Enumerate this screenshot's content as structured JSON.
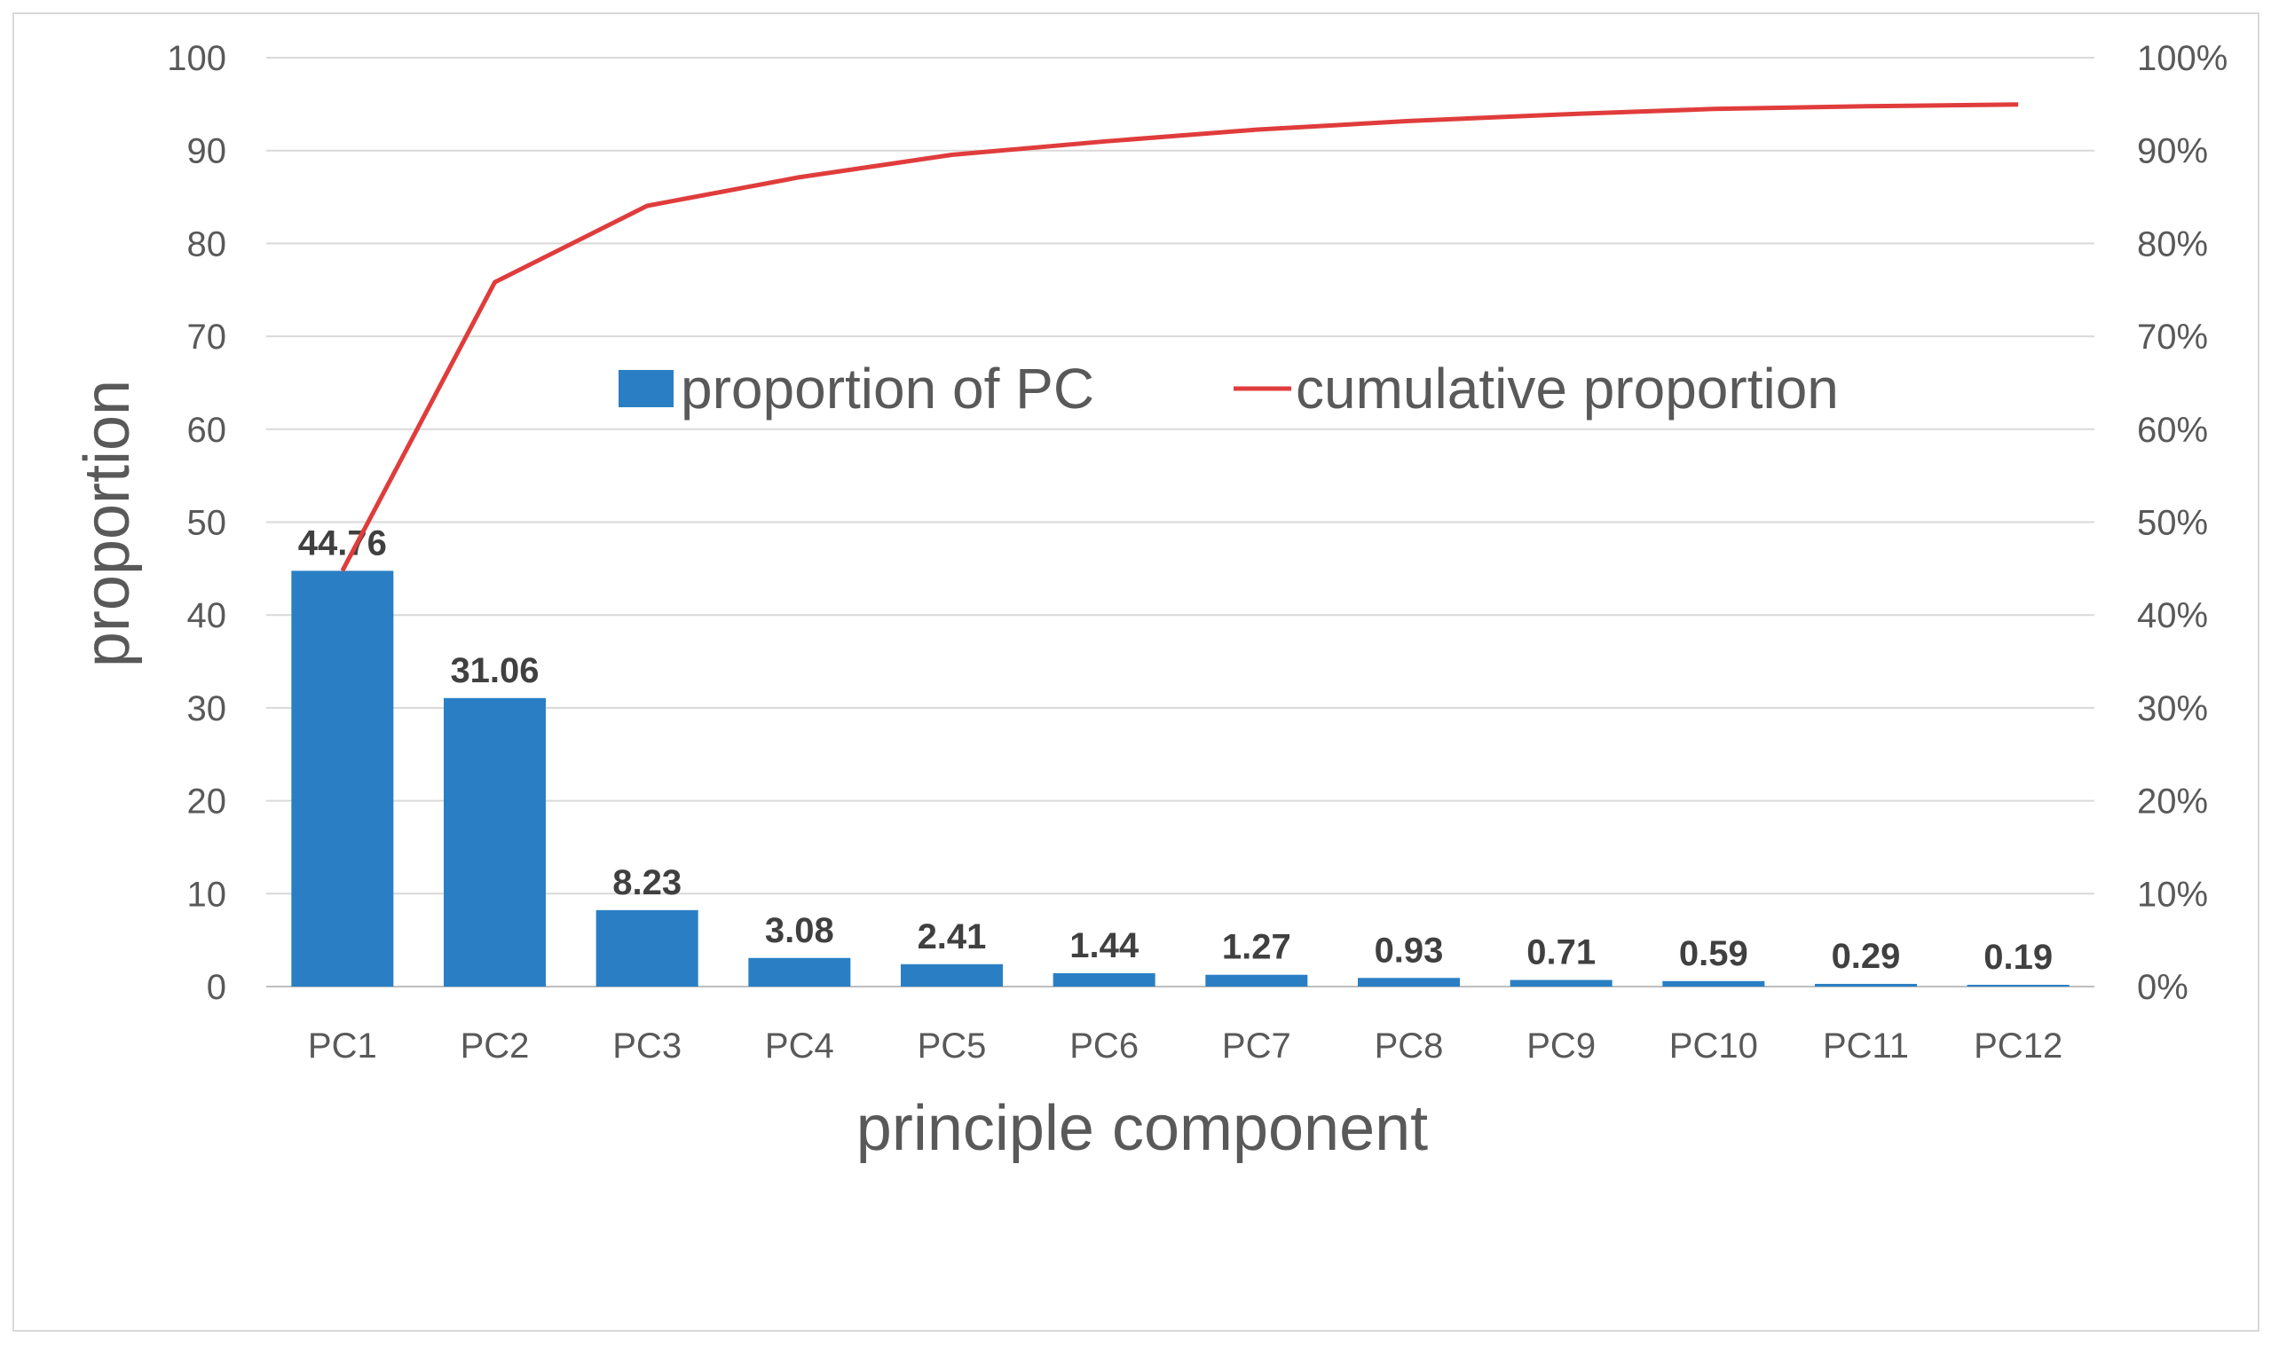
{
  "chart_data": {
    "type": "bar",
    "title": "",
    "xlabel": "principle component",
    "ylabel": "proportion",
    "categories": [
      "PC1",
      "PC2",
      "PC3",
      "PC4",
      "PC5",
      "PC6",
      "PC7",
      "PC8",
      "PC9",
      "PC10",
      "PC11",
      "PC12"
    ],
    "series": [
      {
        "name": "proportion of PC",
        "type": "bar",
        "axis": "left",
        "color": "#2a7fc4",
        "values": [
          44.76,
          31.06,
          8.23,
          3.08,
          2.41,
          1.44,
          1.27,
          0.93,
          0.71,
          0.59,
          0.29,
          0.19
        ],
        "labels": [
          "44.76",
          "31.06",
          "8.23",
          "3.08",
          "2.41",
          "1.44",
          "1.27",
          "0.93",
          "0.71",
          "0.59",
          "0.29",
          "0.19"
        ]
      },
      {
        "name": "cumulative proportion",
        "type": "line",
        "axis": "right",
        "color": "#e03c3c",
        "values": [
          44.76,
          75.82,
          84.05,
          87.13,
          89.54,
          90.98,
          92.25,
          93.18,
          93.89,
          94.48,
          94.77,
          94.96
        ]
      }
    ],
    "ylim": [
      0,
      100
    ],
    "y_ticks": [
      "0",
      "10",
      "20",
      "30",
      "40",
      "50",
      "60",
      "70",
      "80",
      "90",
      "100"
    ],
    "y2lim": [
      0,
      100
    ],
    "y2_ticks": [
      "0%",
      "10%",
      "20%",
      "30%",
      "40%",
      "50%",
      "60%",
      "70%",
      "80%",
      "90%",
      "100%"
    ],
    "grid": true,
    "legend_position": "upper-center, inside plot"
  }
}
